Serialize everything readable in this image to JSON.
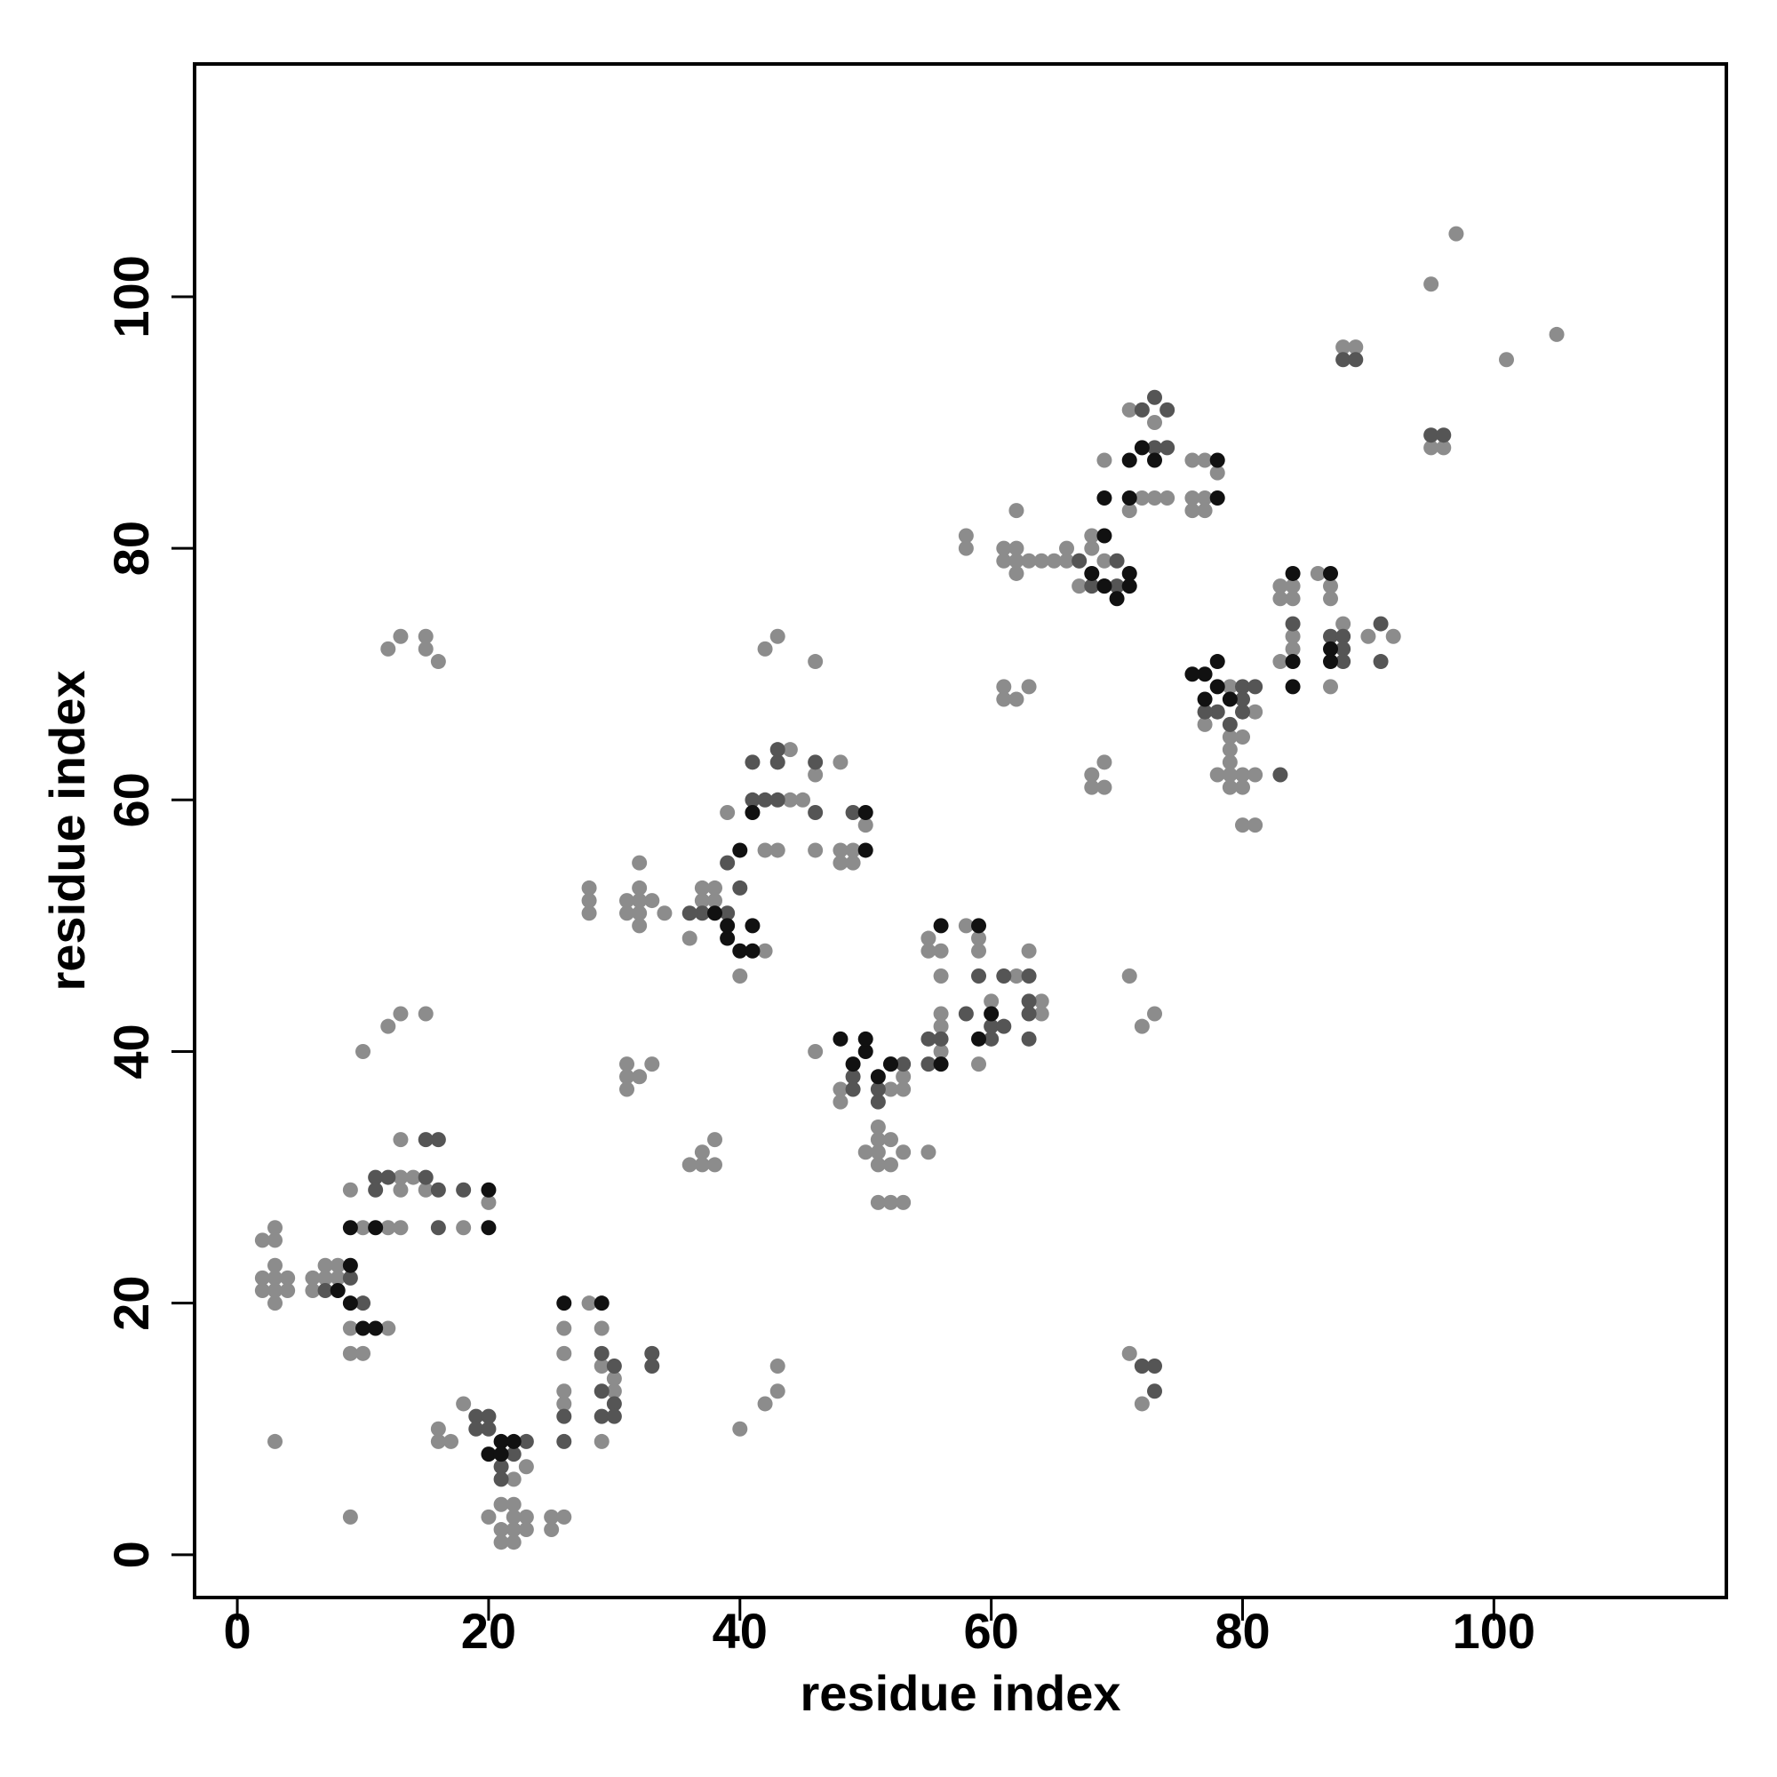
{
  "chart_data": {
    "type": "scatter",
    "x_label": "residue index",
    "y_label": "residue index",
    "xlim": [
      -3.4,
      118.5
    ],
    "ylim": [
      -3.4,
      118.5
    ],
    "xticks": [
      0,
      20,
      40,
      60,
      80,
      100
    ],
    "yticks": [
      0,
      20,
      40,
      60,
      80,
      100
    ],
    "series": [
      {
        "color": "#8c8c8c",
        "x": [
          2,
          2,
          3,
          3,
          3,
          4,
          4,
          3,
          2,
          3,
          3,
          6,
          7,
          7,
          8,
          8,
          6,
          9,
          9,
          10,
          12,
          9,
          10,
          12,
          13,
          13,
          13,
          14,
          13,
          15,
          18,
          17,
          16,
          16,
          18,
          20,
          20,
          21,
          21,
          21,
          22,
          22,
          22,
          22,
          23,
          23,
          23,
          22,
          25,
          26,
          25,
          26,
          26,
          26,
          26,
          28,
          29,
          30,
          29,
          29,
          30,
          3,
          9,
          10,
          12,
          13,
          15,
          12,
          13,
          15,
          15,
          16,
          28,
          28,
          28,
          31,
          31,
          32,
          32,
          32,
          32,
          32,
          33,
          34,
          31,
          31,
          32,
          31,
          33,
          36,
          37,
          37,
          38,
          38,
          36,
          37,
          37,
          38,
          38,
          40,
          42,
          39,
          42,
          43,
          45,
          44,
          44,
          46,
          46,
          48,
          48,
          48,
          49,
          49,
          50,
          42,
          43,
          46,
          46,
          40,
          42,
          43,
          43,
          48,
          48,
          51,
          51,
          51,
          50,
          51,
          52,
          52,
          53,
          52,
          51,
          53,
          52,
          53,
          53,
          55,
          55,
          55,
          56,
          56,
          56,
          56,
          56,
          58,
          59,
          59,
          59,
          60,
          62,
          63,
          64,
          64,
          58,
          58,
          61,
          61,
          62,
          62,
          62,
          62,
          63,
          64,
          65,
          66,
          66,
          67,
          67,
          68,
          68,
          69,
          61,
          61,
          62,
          63,
          68,
          68,
          69,
          69,
          71,
          72,
          73,
          71,
          72,
          72,
          69,
          71,
          71,
          73,
          72,
          73,
          74,
          76,
          77,
          76,
          77,
          76,
          77,
          78,
          77,
          79,
          79,
          80,
          79,
          79,
          78,
          80,
          80,
          79,
          81,
          81,
          80,
          81,
          79,
          83,
          83,
          84,
          84,
          84,
          84,
          83,
          86,
          87,
          87,
          88,
          87,
          90,
          92,
          95,
          97,
          88,
          89,
          101,
          105,
          95,
          96
        ],
        "values": [
          22,
          21,
          23,
          22,
          21,
          22,
          21,
          26,
          25,
          25,
          20,
          22,
          22,
          23,
          23,
          22,
          21,
          18,
          16,
          16,
          18,
          29,
          26,
          26,
          26,
          30,
          33,
          30,
          29,
          29,
          26,
          9,
          10,
          9,
          12,
          3,
          28,
          4,
          2,
          1,
          4,
          3,
          2,
          1,
          3,
          2,
          7,
          6,
          3,
          3,
          2,
          18,
          16,
          13,
          12,
          20,
          18,
          14,
          15,
          9,
          13,
          9,
          3,
          40,
          42,
          43,
          43,
          72,
          73,
          73,
          72,
          71,
          53,
          52,
          51,
          52,
          51,
          55,
          53,
          52,
          51,
          50,
          52,
          51,
          39,
          38,
          38,
          37,
          39,
          31,
          31,
          32,
          33,
          31,
          49,
          53,
          52,
          53,
          52,
          46,
          48,
          59,
          56,
          56,
          60,
          64,
          60,
          62,
          56,
          63,
          56,
          55,
          55,
          56,
          58,
          72,
          73,
          71,
          40,
          10,
          12,
          13,
          15,
          37,
          36,
          34,
          33,
          32,
          32,
          31,
          33,
          31,
          32,
          28,
          28,
          28,
          37,
          37,
          38,
          32,
          48,
          49,
          48,
          46,
          43,
          42,
          40,
          50,
          49,
          48,
          39,
          44,
          46,
          48,
          44,
          43,
          81,
          80,
          80,
          79,
          80,
          79,
          78,
          83,
          79,
          79,
          79,
          80,
          79,
          79,
          77,
          81,
          80,
          79,
          69,
          68,
          68,
          69,
          62,
          61,
          63,
          61,
          46,
          42,
          43,
          16,
          15,
          12,
          87,
          83,
          91,
          90,
          84,
          84,
          84,
          87,
          87,
          84,
          84,
          83,
          83,
          86,
          66,
          65,
          64,
          65,
          63,
          62,
          62,
          62,
          61,
          61,
          62,
          67,
          58,
          58,
          69,
          77,
          76,
          77,
          76,
          73,
          72,
          71,
          78,
          77,
          76,
          74,
          69,
          73,
          73,
          101,
          105,
          96,
          96,
          95,
          97,
          88,
          88
        ]
      },
      {
        "color": "#555555",
        "x": [
          11,
          11,
          12,
          15,
          16,
          15,
          16,
          18,
          16,
          10,
          9,
          7,
          19,
          19,
          20,
          20,
          22,
          23,
          21,
          21,
          26,
          26,
          29,
          29,
          30,
          30,
          30,
          33,
          33,
          29,
          41,
          42,
          43,
          43,
          41,
          46,
          46,
          49,
          43,
          39,
          40,
          39,
          37,
          36,
          49,
          51,
          52,
          53,
          55,
          49,
          51,
          55,
          56,
          58,
          59,
          60,
          60,
          61,
          61,
          63,
          63,
          63,
          63,
          74,
          72,
          74,
          73,
          73,
          70,
          69,
          68,
          67,
          70,
          80,
          81,
          80,
          80,
          78,
          79,
          77,
          83,
          84,
          87,
          88,
          88,
          88,
          91,
          91,
          95,
          96,
          88,
          89,
          72,
          73,
          73
        ],
        "values": [
          29,
          30,
          30,
          33,
          33,
          30,
          29,
          29,
          26,
          20,
          22,
          21,
          11,
          10,
          11,
          10,
          8,
          9,
          7,
          6,
          9,
          11,
          16,
          11,
          15,
          12,
          11,
          16,
          15,
          13,
          60,
          60,
          60,
          63,
          63,
          63,
          59,
          59,
          64,
          55,
          53,
          51,
          51,
          51,
          38,
          37,
          39,
          39,
          39,
          37,
          36,
          41,
          41,
          43,
          46,
          41,
          42,
          46,
          42,
          46,
          44,
          43,
          41,
          88,
          91,
          91,
          92,
          88,
          79,
          77,
          77,
          79,
          77,
          69,
          69,
          67,
          68,
          67,
          66,
          67,
          62,
          74,
          73,
          73,
          72,
          71,
          74,
          71,
          89,
          89,
          95,
          95,
          15,
          15,
          13
        ]
      },
      {
        "color": "#111111",
        "x": [
          9,
          11,
          20,
          20,
          9,
          8,
          9,
          10,
          11,
          26,
          29,
          20,
          21,
          21,
          22,
          48,
          49,
          50,
          50,
          51,
          52,
          39,
          40,
          41,
          41,
          38,
          39,
          40,
          41,
          50,
          50,
          56,
          59,
          56,
          59,
          60,
          77,
          78,
          78,
          77,
          79,
          84,
          87,
          84,
          84,
          87,
          87,
          68,
          69,
          70,
          71,
          71,
          69,
          69,
          71,
          71,
          78,
          78,
          76,
          72,
          73
        ],
        "values": [
          26,
          26,
          29,
          26,
          23,
          21,
          20,
          18,
          18,
          20,
          20,
          8,
          9,
          8,
          9,
          41,
          39,
          40,
          41,
          38,
          39,
          49,
          48,
          48,
          50,
          51,
          50,
          56,
          59,
          59,
          56,
          50,
          50,
          39,
          41,
          43,
          70,
          71,
          69,
          68,
          68,
          78,
          78,
          71,
          69,
          71,
          72,
          78,
          77,
          76,
          77,
          78,
          81,
          84,
          84,
          87,
          87,
          84,
          70,
          88,
          87
        ]
      }
    ]
  }
}
